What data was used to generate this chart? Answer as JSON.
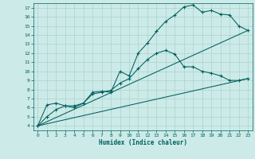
{
  "title": "",
  "xlabel": "Humidex (Indice chaleur)",
  "xlim": [
    -0.5,
    23.5
  ],
  "ylim": [
    3.5,
    17.5
  ],
  "xticks": [
    0,
    1,
    2,
    3,
    4,
    5,
    6,
    7,
    8,
    9,
    10,
    11,
    12,
    13,
    14,
    15,
    16,
    17,
    18,
    19,
    20,
    21,
    22,
    23
  ],
  "yticks": [
    4,
    5,
    6,
    7,
    8,
    9,
    10,
    11,
    12,
    13,
    14,
    15,
    16,
    17
  ],
  "bg_color": "#cceae7",
  "line_color": "#005f5f",
  "grid_color": "#aad4d0",
  "line1_x": [
    0,
    1,
    2,
    3,
    4,
    5,
    6,
    7,
    8,
    9,
    10,
    11,
    12,
    13,
    14,
    15,
    16,
    17,
    18,
    19,
    20,
    21,
    22,
    23
  ],
  "line1_y": [
    4.0,
    6.3,
    6.5,
    6.2,
    6.2,
    6.5,
    7.7,
    7.8,
    7.7,
    10.0,
    9.5,
    12.0,
    13.1,
    14.4,
    15.5,
    16.2,
    17.1,
    17.3,
    16.5,
    16.7,
    16.3,
    16.2,
    15.0,
    14.5
  ],
  "line2_x": [
    0,
    1,
    2,
    3,
    4,
    5,
    6,
    7,
    8,
    9,
    10,
    11,
    12,
    13,
    14,
    15,
    16,
    17,
    18,
    19,
    20,
    21,
    22,
    23
  ],
  "line2_y": [
    4.0,
    5.0,
    5.8,
    6.2,
    6.0,
    6.5,
    7.5,
    7.7,
    7.9,
    8.7,
    9.2,
    10.3,
    11.3,
    12.0,
    12.3,
    11.9,
    10.5,
    10.5,
    10.0,
    9.8,
    9.5,
    9.0,
    9.0,
    9.2
  ],
  "line3_x": [
    0,
    23
  ],
  "line3_y": [
    4.0,
    14.5
  ],
  "line4_x": [
    0,
    23
  ],
  "line4_y": [
    4.0,
    9.2
  ],
  "marker": "+"
}
